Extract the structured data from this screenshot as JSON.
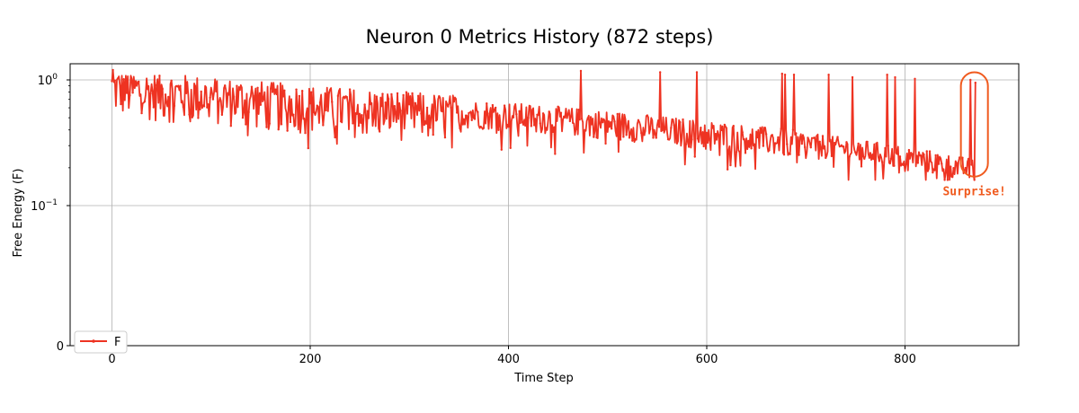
{
  "chart_data": {
    "type": "line",
    "title": "Neuron 0 Metrics History (872 steps)",
    "xlabel": "Time Step",
    "ylabel": "Free Energy (F)",
    "xlim": [
      -40,
      912
    ],
    "x_ticks": [
      0,
      200,
      400,
      600,
      800
    ],
    "x_tick_labels": [
      "0",
      "200",
      "400",
      "600",
      "800"
    ],
    "yscale": "symlog",
    "y_ticks": [
      0,
      0.1,
      1
    ],
    "y_tick_labels": [
      "0",
      "10^-1",
      "10^0"
    ],
    "grid": true,
    "legend": {
      "placement": "lower-left",
      "entries": [
        "F"
      ]
    },
    "series": [
      {
        "name": "F",
        "color": "#ee3322",
        "n_points": 872,
        "trend": [
          [
            0,
            0.95
          ],
          [
            100,
            0.82
          ],
          [
            200,
            0.7
          ],
          [
            300,
            0.62
          ],
          [
            400,
            0.56
          ],
          [
            500,
            0.48
          ],
          [
            600,
            0.4
          ],
          [
            700,
            0.33
          ],
          [
            800,
            0.26
          ],
          [
            860,
            0.21
          ],
          [
            872,
            0.2
          ]
        ],
        "spikes": [
          [
            1,
            1.2
          ],
          [
            473,
            1.18
          ],
          [
            553,
            1.15
          ],
          [
            590,
            1.15
          ],
          [
            676,
            1.12
          ],
          [
            679,
            1.1
          ],
          [
            688,
            1.1
          ],
          [
            723,
            1.1
          ],
          [
            747,
            1.05
          ],
          [
            782,
            1.1
          ],
          [
            790,
            1.05
          ],
          [
            810,
            1.02
          ],
          [
            866,
            1.0
          ],
          [
            871,
            0.95
          ]
        ]
      }
    ],
    "annotation": {
      "text": "Surprise!",
      "color": "#f05a1e",
      "x_range": [
        860,
        880
      ],
      "y_range": [
        0.17,
        1.15
      ]
    }
  }
}
